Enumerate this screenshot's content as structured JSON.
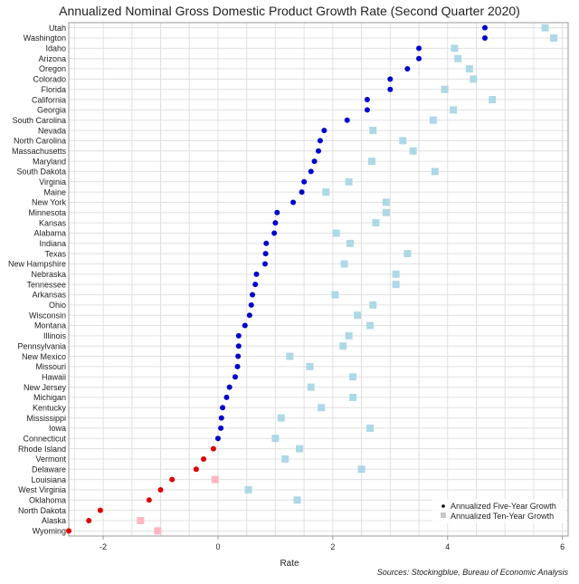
{
  "chart_data": {
    "type": "scatter",
    "title": "Annualized Nominal Gross Domestic Product Growth Rate (Second Quarter 2020)",
    "xlabel": "Rate",
    "ylabel": "",
    "xlim": [
      -2.6,
      6.1
    ],
    "x_ticks": [
      -2,
      0,
      2,
      4,
      6
    ],
    "grid": true,
    "legend_position": "bottom-right",
    "source": "Sources: Stockingblue, Bureau of Economic Analysis",
    "categories": [
      "Utah",
      "Washington",
      "Idaho",
      "Arizona",
      "Oregon",
      "Colorado",
      "Florida",
      "California",
      "Georgia",
      "South Carolina",
      "Nevada",
      "North Carolina",
      "Massachusetts",
      "Maryland",
      "South Dakota",
      "Virginia",
      "Maine",
      "New York",
      "Minnesota",
      "Kansas",
      "Alabama",
      "Indiana",
      "Texas",
      "New Hampshire",
      "Nebraska",
      "Tennessee",
      "Arkansas",
      "Ohio",
      "Wisconsin",
      "Montana",
      "Illinois",
      "Pennsylvania",
      "New Mexico",
      "Missouri",
      "Hawaii",
      "New Jersey",
      "Michigan",
      "Kentucky",
      "Mississippi",
      "Iowa",
      "Connecticut",
      "Rhode Island",
      "Vermont",
      "Delaware",
      "Louisiana",
      "West Virginia",
      "Oklahoma",
      "North Dakota",
      "Alaska",
      "Wyoming"
    ],
    "series": [
      {
        "name": "Annualized Five-Year Growth",
        "color_positive": "#0000cc",
        "color_negative": "#dd0000",
        "values": [
          4.65,
          4.65,
          3.5,
          3.5,
          3.3,
          3.0,
          3.0,
          2.6,
          2.6,
          2.25,
          1.85,
          1.78,
          1.75,
          1.68,
          1.62,
          1.5,
          1.46,
          1.31,
          1.03,
          1.0,
          0.98,
          0.84,
          0.83,
          0.82,
          0.67,
          0.65,
          0.6,
          0.58,
          0.55,
          0.47,
          0.36,
          0.36,
          0.35,
          0.34,
          0.3,
          0.2,
          0.15,
          0.08,
          0.06,
          0.05,
          0.0,
          -0.08,
          -0.25,
          -0.38,
          -0.8,
          -1.0,
          -1.2,
          -2.05,
          -2.25,
          -2.6
        ]
      },
      {
        "name": "Annualized Ten-Year Growth",
        "color_positive": "#add8e6",
        "color_negative": "#ffb6c1",
        "values": [
          5.7,
          5.85,
          4.12,
          4.18,
          4.38,
          4.45,
          3.95,
          4.78,
          4.1,
          3.75,
          2.7,
          3.22,
          3.4,
          2.68,
          3.78,
          2.28,
          1.88,
          2.93,
          2.93,
          2.75,
          2.06,
          2.3,
          3.3,
          2.2,
          3.1,
          3.1,
          2.04,
          2.7,
          2.43,
          2.65,
          2.28,
          2.18,
          1.25,
          1.6,
          2.35,
          1.62,
          2.35,
          1.8,
          1.1,
          2.65,
          1.0,
          1.42,
          1.17,
          2.5,
          -0.05,
          0.53,
          1.38,
          null,
          -1.35,
          -1.05
        ]
      }
    ]
  }
}
